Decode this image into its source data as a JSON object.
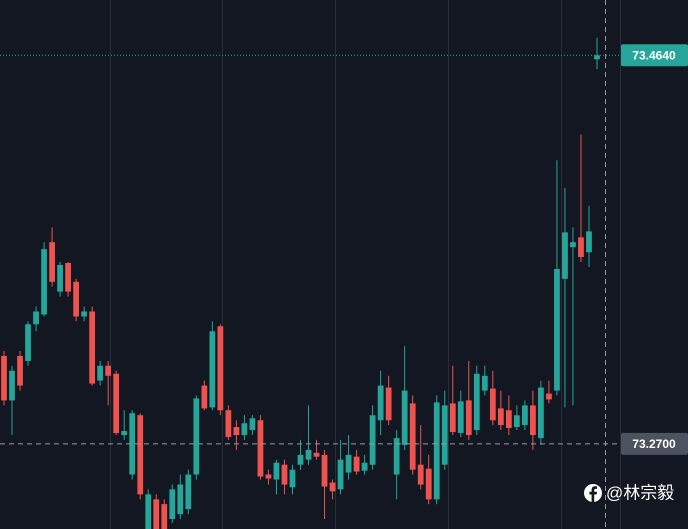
{
  "chart_data": {
    "type": "candlestick",
    "ylim": [
      73.2275,
      73.4916
    ],
    "up_color": "#26a69a",
    "down_color": "#ef5350",
    "open": [
      73.3139,
      73.2917,
      73.3139,
      73.3114,
      73.3297,
      73.3346,
      73.3707,
      73.346,
      73.3603,
      73.3509,
      73.3336,
      73.3361,
      73.3016,
      73.309,
      73.305,
      73.2744,
      73.2547,
      73.2843,
      73.2275,
      73.2423,
      73.2399,
      73.2325,
      73.2349,
      73.2374,
      73.2547,
      73.2991,
      73.2882,
      73.3287,
      73.2868,
      73.2784,
      73.2744,
      73.2769,
      73.2818,
      73.2547,
      73.2522,
      73.2596,
      73.2483,
      73.2596,
      73.2621,
      73.2655,
      73.2645,
      73.2507,
      73.2473,
      73.2557,
      73.2636,
      73.2566,
      73.2596,
      73.2818,
      73.2981,
      73.2547,
      73.2695,
      73.2902,
      73.2596,
      73.2576,
      73.2423,
      73.2596,
      73.2902,
      73.2754,
      73.2917,
      73.2769,
      73.2966,
      73.2976,
      73.2877,
      73.2868,
      73.2784,
      73.2794,
      73.2892,
      73.2729,
      73.2951,
      73.2966,
      73.3524,
      73.3682,
      73.3731,
      73.3657,
      73.462
    ],
    "high": [
      73.3164,
      73.309,
      73.3164,
      73.3312,
      73.3386,
      73.3707,
      73.3781,
      73.3608,
      73.3608,
      73.3524,
      73.3386,
      73.3386,
      73.3114,
      73.3114,
      73.3065,
      73.2868,
      73.2868,
      73.2853,
      73.2473,
      73.2448,
      73.2423,
      73.2497,
      73.2547,
      73.2571,
      73.2942,
      73.3016,
      73.3312,
      73.3297,
      73.2892,
      73.2818,
      73.2843,
      73.2843,
      73.2843,
      73.2571,
      73.2621,
      73.2621,
      73.2596,
      73.272,
      73.2892,
      73.272,
      73.267,
      73.2522,
      73.272,
      73.2744,
      73.267,
      73.2645,
      73.2892,
      73.3065,
      73.304,
      73.2769,
      73.3188,
      73.2942,
      73.2794,
      73.2645,
      73.2942,
      73.2966,
      73.309,
      73.2966,
      73.3114,
      73.309,
      73.309,
      73.3065,
      73.2966,
      73.2942,
      73.2892,
      73.2917,
      73.2966,
      73.3016,
      73.3016,
      73.4116,
      73.3978,
      73.3781,
      73.4245,
      73.3889,
      73.4728
    ],
    "low": [
      73.2892,
      73.2744,
      73.2966,
      73.309,
      73.3262,
      73.3336,
      73.3485,
      73.3435,
      73.3435,
      73.3312,
      73.3312,
      73.2991,
      73.2991,
      73.2892,
      73.2744,
      73.272,
      73.2522,
      73.2423,
      73.2251,
      73.2251,
      73.2251,
      73.2305,
      73.2325,
      73.2349,
      73.2522,
      73.2868,
      73.2868,
      73.2843,
      73.272,
      73.267,
      73.272,
      73.2744,
      73.2522,
      73.2497,
      73.2448,
      73.2448,
      73.2448,
      73.2571,
      73.2596,
      73.2621,
      73.2325,
      73.2423,
      73.2448,
      73.2522,
      73.2547,
      73.2547,
      73.2571,
      73.2744,
      73.2794,
      73.2423,
      73.267,
      73.2547,
      73.2473,
      73.2399,
      73.2399,
      73.2571,
      73.2744,
      73.2734,
      73.272,
      73.2744,
      73.2942,
      73.2794,
      73.2769,
      73.2744,
      73.2769,
      73.2769,
      73.267,
      73.2695,
      73.2902,
      73.2942,
      73.2882,
      73.2892,
      73.3608,
      73.3583,
      73.4571
    ],
    "close": [
      73.2917,
      73.3065,
      73.2991,
      73.3297,
      73.3361,
      73.3672,
      73.3509,
      73.3593,
      73.346,
      73.3336,
      73.3361,
      73.3001,
      73.309,
      73.304,
      73.2754,
      73.2764,
      73.2853,
      73.2448,
      73.2448,
      73.2275,
      73.2275,
      73.2473,
      73.2497,
      73.2547,
      73.2927,
      73.2877,
      73.3262,
      73.2868,
      73.2734,
      73.2744,
      73.2803,
      73.2828,
      73.2537,
      73.2527,
      73.2606,
      73.2497,
      73.2571,
      73.2645,
      73.267,
      73.2636,
      73.2487,
      73.2463,
      73.2621,
      73.2645,
      73.2562,
      73.2606,
      73.2843,
      73.2991,
      73.2818,
      73.2729,
      73.2966,
      73.2571,
      73.2497,
      73.2423,
      73.2907,
      73.2892,
      73.2759,
      73.2912,
      73.2744,
      73.305,
      73.304,
      73.2818,
      73.2794,
      73.2779,
      73.2843,
      73.2892,
      73.2744,
      73.2981,
      73.2922,
      73.3573,
      73.3756,
      73.3707,
      73.3633,
      73.3761,
      73.464
    ],
    "price_labels": [
      {
        "value": 73.464,
        "label": "73.4640"
      },
      {
        "value": 73.27,
        "label": "73.2700"
      }
    ],
    "watermark": "@林宗毅"
  }
}
